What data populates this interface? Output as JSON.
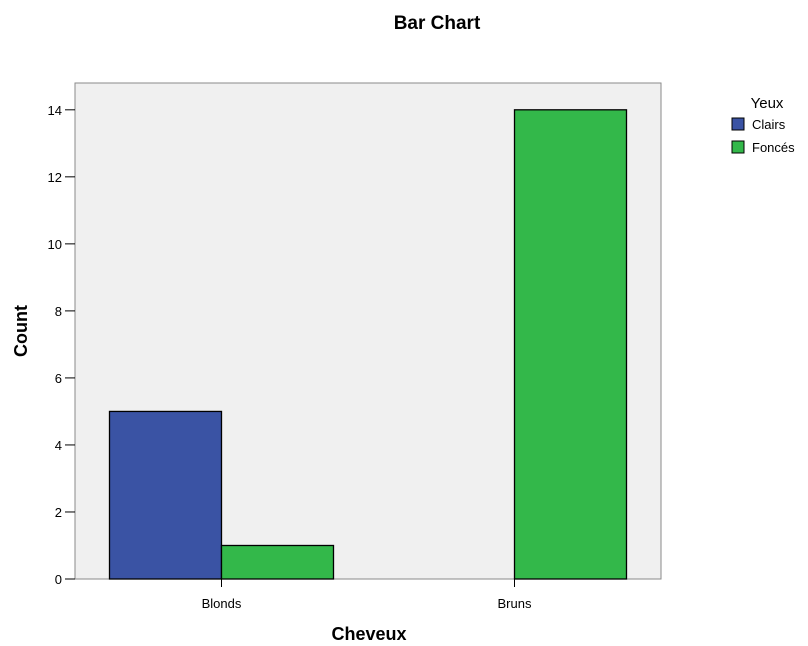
{
  "chart_data": {
    "type": "bar",
    "title": "Bar Chart",
    "xlabel": "Cheveux",
    "ylabel": "Count",
    "categories": [
      "Blonds",
      "Bruns"
    ],
    "series": [
      {
        "name": "Clairs",
        "values": [
          5,
          0
        ],
        "color": "#3a53a4"
      },
      {
        "name": "Foncés",
        "values": [
          1,
          14
        ],
        "color": "#33b84a"
      }
    ],
    "ylim": [
      0,
      14.8
    ],
    "yticks": [
      0,
      2,
      4,
      6,
      8,
      10,
      12,
      14
    ],
    "legend": {
      "title": "Yeux",
      "placement": "right"
    },
    "grid": false,
    "plot_background": "#f0f0f0"
  }
}
